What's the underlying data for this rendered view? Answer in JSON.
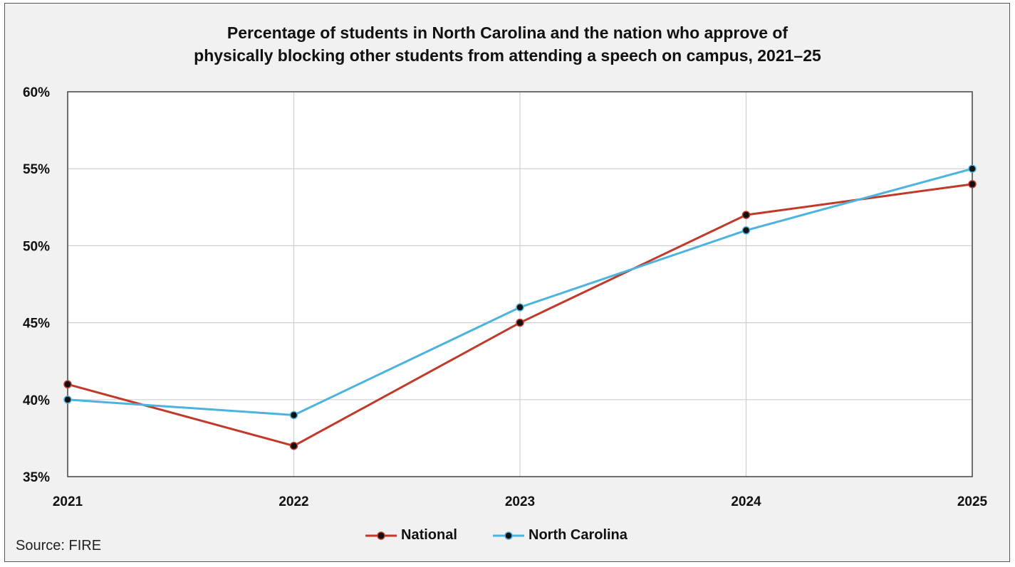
{
  "chart_data": {
    "type": "line",
    "title_line1": "Percentage of students in North Carolina and the nation who approve of",
    "title_line2": "physically blocking other students from attending a speech on campus, 2021–25",
    "x": [
      "2021",
      "2022",
      "2023",
      "2024",
      "2025"
    ],
    "ylim": [
      35,
      60
    ],
    "yticks": [
      35,
      40,
      45,
      50,
      55,
      60
    ],
    "ytick_labels": [
      "35%",
      "40%",
      "45%",
      "50%",
      "55%",
      "60%"
    ],
    "grid": true,
    "legend_placement": "bottom",
    "series": [
      {
        "name": "National",
        "color": "#c0392b",
        "values": [
          41,
          37,
          45,
          52,
          54
        ]
      },
      {
        "name": "North Carolina",
        "color": "#4bb3dd",
        "values": [
          40,
          39,
          46,
          51,
          55
        ]
      }
    ],
    "source": "Source: FIRE"
  }
}
